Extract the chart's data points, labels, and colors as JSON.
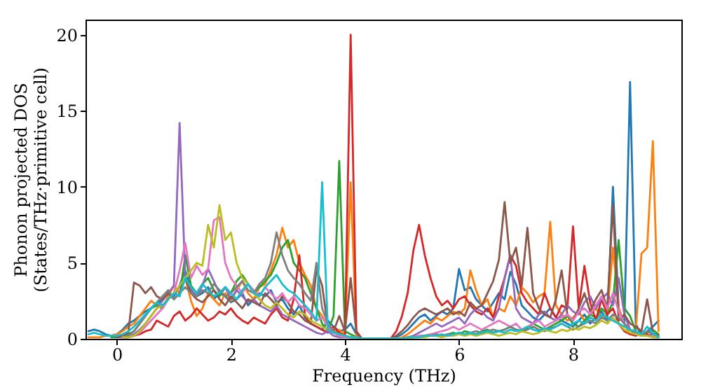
{
  "chart_data": {
    "type": "line",
    "xlabel": "Frequency (THz)",
    "ylabel": "Phonon projected DOS\n(States/THz·primitive cell)",
    "xlim": [
      -0.55,
      9.9
    ],
    "ylim": [
      0,
      21
    ],
    "xticks": [
      0,
      2,
      4,
      6,
      8
    ],
    "yticks": [
      0,
      5,
      10,
      15,
      20
    ],
    "grid": false,
    "marker": "none",
    "line_style": "solid",
    "x": [
      -0.5,
      -0.4,
      -0.3,
      -0.2,
      -0.1,
      0.0,
      0.1,
      0.2,
      0.3,
      0.4,
      0.5,
      0.6,
      0.7,
      0.8,
      0.9,
      1.0,
      1.1,
      1.2,
      1.3,
      1.4,
      1.5,
      1.6,
      1.7,
      1.8,
      1.9,
      2.0,
      2.1,
      2.2,
      2.3,
      2.4,
      2.5,
      2.6,
      2.7,
      2.8,
      2.9,
      3.0,
      3.1,
      3.2,
      3.3,
      3.4,
      3.5,
      3.6,
      3.7,
      3.8,
      3.9,
      4.0,
      4.1,
      4.2,
      4.3,
      4.4,
      4.5,
      4.6,
      4.7,
      4.8,
      4.9,
      5.0,
      5.1,
      5.2,
      5.3,
      5.4,
      5.5,
      5.6,
      5.7,
      5.8,
      5.9,
      6.0,
      6.1,
      6.2,
      6.3,
      6.4,
      6.5,
      6.6,
      6.7,
      6.8,
      6.9,
      7.0,
      7.1,
      7.2,
      7.3,
      7.4,
      7.5,
      7.6,
      7.7,
      7.8,
      7.9,
      8.0,
      8.1,
      8.2,
      8.3,
      8.4,
      8.5,
      8.6,
      8.7,
      8.8,
      8.9,
      9.0,
      9.1,
      9.2,
      9.3,
      9.4,
      9.5
    ],
    "series": [
      {
        "color": "#1f77b4",
        "values": [
          0.5,
          0.6,
          0.5,
          0.3,
          0.2,
          0.3,
          0.6,
          1.0,
          1.2,
          1.5,
          1.8,
          2.0,
          2.3,
          2.6,
          3.0,
          2.8,
          3.5,
          4.5,
          3.2,
          2.8,
          3.0,
          3.4,
          2.6,
          3.0,
          2.8,
          2.4,
          2.6,
          3.0,
          2.2,
          2.6,
          3.0,
          2.8,
          3.2,
          2.4,
          2.6,
          2.0,
          1.6,
          2.2,
          1.4,
          1.0,
          0.8,
          0.6,
          1.2,
          0.8,
          0.5,
          0.6,
          1.0,
          0.3,
          0,
          0,
          0,
          0,
          0,
          0,
          0.1,
          0.3,
          0.6,
          1.0,
          1.4,
          1.6,
          1.2,
          1.5,
          1.8,
          1.6,
          2.0,
          4.6,
          3.2,
          3.4,
          2.6,
          2.2,
          1.8,
          2.4,
          3.0,
          2.6,
          4.4,
          3.6,
          2.2,
          1.8,
          1.4,
          1.2,
          1.6,
          2.0,
          1.4,
          1.2,
          1.0,
          0.8,
          1.2,
          1.6,
          1.0,
          1.4,
          1.8,
          1.2,
          10.0,
          2.0,
          1.0,
          16.9,
          1.0,
          0.2,
          0.5,
          0.8,
          1.2
        ]
      },
      {
        "color": "#ff7f0e",
        "values": [
          0.1,
          0.1,
          0.1,
          0.2,
          0.2,
          0.3,
          0.5,
          0.8,
          1.0,
          1.5,
          2.0,
          2.5,
          2.2,
          2.0,
          2.8,
          3.5,
          3.0,
          4.0,
          2.5,
          1.5,
          2.0,
          3.0,
          2.6,
          2.2,
          3.0,
          2.5,
          3.2,
          3.8,
          3.0,
          2.6,
          3.4,
          3.6,
          4.5,
          5.5,
          7.3,
          6.0,
          6.5,
          5.0,
          4.2,
          3.5,
          2.0,
          1.5,
          0.8,
          0.4,
          0.6,
          0.3,
          10.3,
          0.2,
          0,
          0,
          0,
          0,
          0,
          0,
          0,
          0.1,
          0.3,
          0.6,
          0.9,
          1.2,
          1.0,
          1.4,
          1.2,
          1.5,
          1.8,
          1.6,
          2.0,
          4.5,
          3.2,
          2.2,
          2.6,
          1.4,
          2.0,
          1.8,
          2.8,
          2.2,
          3.4,
          3.0,
          2.4,
          2.8,
          3.0,
          7.7,
          2.2,
          1.6,
          1.2,
          1.4,
          1.8,
          1.2,
          1.6,
          2.0,
          1.4,
          1.6,
          6.0,
          2.0,
          1.0,
          0.3,
          0.5,
          5.6,
          6.0,
          13.0,
          0.5
        ]
      },
      {
        "color": "#2ca02c",
        "values": [
          null,
          null,
          null,
          null,
          0.1,
          0.1,
          0.2,
          0.3,
          0.5,
          1.0,
          1.5,
          2.0,
          2.2,
          2.0,
          2.6,
          3.0,
          2.8,
          5.5,
          3.5,
          3.0,
          3.6,
          4.0,
          3.2,
          2.8,
          3.4,
          3.0,
          3.8,
          4.2,
          3.6,
          3.0,
          3.4,
          3.8,
          4.2,
          5.0,
          6.0,
          6.5,
          5.0,
          4.5,
          4.0,
          3.0,
          2.0,
          1.0,
          0.5,
          1.5,
          11.7,
          0.5,
          0.3,
          0.1,
          0,
          0,
          0,
          0,
          0,
          0,
          0,
          0,
          0.1,
          0.1,
          0.2,
          0.2,
          0.3,
          0.3,
          0.2,
          0.3,
          0.4,
          0.3,
          0.5,
          0.4,
          0.3,
          0.5,
          0.6,
          0.4,
          0.5,
          0.6,
          0.8,
          0.6,
          0.5,
          0.7,
          1.0,
          0.8,
          0.6,
          0.8,
          1.0,
          1.2,
          1.5,
          1.0,
          0.8,
          1.2,
          1.6,
          1.4,
          2.0,
          1.6,
          2.4,
          6.5,
          2.0,
          1.5,
          0.5,
          0.2,
          0.4,
          0.6,
          0.3
        ]
      },
      {
        "color": "#d62728",
        "values": [
          null,
          null,
          null,
          null,
          null,
          null,
          0.1,
          0.1,
          0.2,
          0.3,
          0.5,
          0.6,
          1.2,
          1.0,
          0.8,
          1.5,
          1.8,
          1.2,
          1.5,
          2.0,
          1.6,
          1.2,
          1.4,
          1.8,
          1.6,
          2.0,
          1.5,
          1.2,
          1.0,
          1.4,
          1.2,
          1.0,
          1.6,
          2.0,
          1.4,
          1.2,
          2.6,
          5.5,
          1.5,
          1.0,
          0.8,
          0.6,
          0.4,
          0.8,
          0.4,
          0.2,
          20.0,
          0.5,
          0,
          0,
          0,
          0,
          0,
          0,
          0.5,
          1.5,
          3.0,
          5.8,
          7.5,
          5.5,
          4.0,
          2.8,
          2.2,
          2.5,
          2.0,
          2.6,
          2.8,
          2.2,
          1.8,
          1.6,
          2.0,
          1.4,
          2.8,
          4.0,
          5.5,
          4.8,
          3.0,
          2.4,
          2.0,
          1.6,
          3.0,
          2.0,
          1.4,
          2.2,
          2.0,
          7.4,
          2.0,
          4.8,
          2.4,
          1.2,
          2.6,
          1.6,
          2.0,
          1.0,
          0.5,
          0.3,
          0.2,
          0.4,
          0.3,
          0.1,
          0.1
        ]
      },
      {
        "color": "#9467bd",
        "values": [
          null,
          null,
          null,
          null,
          null,
          0.1,
          0.1,
          0.1,
          0.3,
          0.6,
          1.0,
          1.5,
          2.0,
          2.5,
          3.0,
          3.5,
          14.2,
          4.0,
          3.2,
          2.8,
          3.5,
          4.6,
          3.8,
          3.0,
          3.4,
          2.6,
          3.2,
          2.8,
          2.4,
          2.6,
          2.2,
          2.0,
          1.8,
          2.2,
          1.6,
          1.4,
          1.2,
          1.0,
          0.8,
          0.6,
          0.4,
          0.3,
          0.5,
          0.2,
          0.1,
          0.1,
          0.1,
          0.1,
          0,
          0,
          0,
          0,
          0,
          0,
          0,
          0,
          0.1,
          0.2,
          0.4,
          0.6,
          0.8,
          1.0,
          0.8,
          1.0,
          1.2,
          1.4,
          1.0,
          1.6,
          2.0,
          1.8,
          1.4,
          1.2,
          2.0,
          4.0,
          5.5,
          2.0,
          1.4,
          1.2,
          1.0,
          1.6,
          1.8,
          1.4,
          1.2,
          1.6,
          2.2,
          1.8,
          1.6,
          2.4,
          2.8,
          2.0,
          2.6,
          3.0,
          2.2,
          4.0,
          1.6,
          0.6,
          0.4,
          0.3,
          0.2,
          0.3,
          0.1
        ]
      },
      {
        "color": "#8c564b",
        "values": [
          null,
          null,
          null,
          null,
          null,
          0.1,
          0.2,
          0.4,
          3.7,
          3.5,
          3.0,
          3.4,
          2.8,
          2.6,
          3.0,
          2.6,
          3.0,
          4.0,
          3.0,
          2.6,
          2.4,
          2.8,
          3.2,
          2.6,
          2.2,
          2.8,
          2.4,
          2.0,
          2.6,
          2.4,
          2.2,
          3.0,
          2.6,
          2.2,
          2.8,
          2.4,
          1.8,
          1.6,
          1.2,
          1.0,
          4.6,
          3.5,
          0.8,
          0.5,
          1.5,
          0.5,
          4.0,
          0.4,
          0,
          0,
          0,
          0,
          0,
          0,
          0.2,
          0.5,
          0.9,
          1.4,
          1.8,
          2.0,
          1.8,
          1.6,
          1.8,
          2.0,
          1.6,
          1.8,
          1.5,
          2.4,
          2.0,
          2.2,
          3.0,
          3.8,
          5.2,
          9.0,
          5.0,
          6.0,
          3.5,
          7.3,
          3.0,
          2.0,
          1.6,
          1.4,
          2.6,
          4.5,
          1.6,
          1.2,
          2.0,
          3.0,
          1.8,
          2.6,
          3.2,
          2.0,
          8.8,
          1.2,
          1.6,
          1.0,
          0.8,
          0.5,
          2.6,
          0.4,
          0.2
        ]
      },
      {
        "color": "#e377c2",
        "values": [
          null,
          null,
          null,
          null,
          null,
          null,
          0.1,
          0.1,
          0.2,
          0.4,
          0.8,
          1.2,
          1.6,
          2.0,
          2.6,
          3.0,
          4.5,
          6.3,
          4.0,
          4.8,
          4.2,
          4.6,
          7.8,
          8.0,
          5.0,
          4.0,
          3.5,
          3.0,
          3.6,
          3.2,
          2.8,
          3.4,
          3.0,
          2.6,
          3.0,
          2.4,
          2.8,
          2.2,
          2.0,
          1.6,
          1.2,
          1.4,
          0.8,
          0.4,
          0.2,
          0.1,
          0.1,
          0.1,
          0,
          0,
          0,
          0,
          0,
          0,
          0,
          0,
          0.1,
          0.1,
          0.2,
          0.2,
          0.3,
          0.4,
          0.5,
          0.6,
          0.8,
          0.6,
          0.8,
          1.0,
          0.8,
          0.6,
          0.8,
          1.0,
          1.2,
          1.0,
          0.8,
          1.0,
          0.6,
          0.8,
          1.0,
          1.2,
          0.8,
          1.0,
          1.2,
          1.4,
          1.6,
          1.2,
          1.8,
          2.0,
          1.6,
          2.2,
          2.8,
          2.0,
          3.0,
          1.8,
          1.0,
          0.6,
          0.3,
          null,
          null,
          null,
          null
        ]
      },
      {
        "color": "#7f7f7f",
        "values": [
          null,
          null,
          null,
          null,
          null,
          null,
          0.1,
          0.2,
          0.5,
          1.0,
          1.5,
          2.0,
          2.4,
          2.8,
          3.2,
          2.6,
          3.0,
          3.4,
          3.0,
          2.8,
          3.2,
          3.0,
          3.6,
          3.2,
          2.8,
          3.0,
          3.4,
          3.8,
          3.2,
          3.0,
          3.6,
          4.0,
          5.0,
          7.0,
          5.5,
          4.5,
          4.0,
          3.6,
          3.0,
          2.5,
          5.0,
          2.0,
          1.0,
          0.5,
          0.3,
          0.2,
          0.1,
          0.1,
          0,
          0,
          0,
          0,
          0,
          0,
          0,
          0,
          0.1,
          0.1,
          0.1,
          0.2,
          0.2,
          0.3,
          0.2,
          0.3,
          0.3,
          0.4,
          0.3,
          0.4,
          0.5,
          0.4,
          0.5,
          0.6,
          0.5,
          0.6,
          0.8,
          0.6,
          0.5,
          0.6,
          0.8,
          0.6,
          0.5,
          0.7,
          0.8,
          1.0,
          0.8,
          0.6,
          0.8,
          1.0,
          1.2,
          1.0,
          1.4,
          1.2,
          1.6,
          1.4,
          1.0,
          0.6,
          0.3,
          0.2,
          0.5,
          0.3,
          0.1
        ]
      },
      {
        "color": "#bcbd22",
        "values": [
          null,
          null,
          null,
          null,
          null,
          null,
          0.1,
          0.1,
          0.2,
          0.5,
          1.0,
          1.5,
          2.0,
          2.2,
          2.6,
          3.0,
          3.5,
          4.0,
          4.5,
          5.0,
          4.8,
          7.5,
          6.0,
          8.8,
          6.5,
          7.0,
          5.0,
          4.0,
          3.6,
          3.0,
          2.6,
          2.2,
          2.0,
          2.4,
          2.0,
          1.6,
          1.4,
          1.8,
          1.6,
          1.2,
          1.0,
          0.8,
          0.6,
          0.4,
          0.3,
          0.2,
          0.1,
          0.1,
          0,
          0,
          0,
          0,
          0,
          0,
          0,
          0,
          0,
          0.1,
          0.1,
          0.1,
          0.2,
          0.2,
          0.1,
          0.2,
          0.2,
          0.3,
          0.2,
          0.3,
          0.2,
          0.3,
          0.4,
          0.3,
          0.2,
          0.3,
          0.4,
          0.3,
          0.5,
          0.4,
          0.3,
          0.4,
          0.6,
          0.5,
          0.4,
          0.6,
          0.5,
          0.7,
          0.6,
          0.8,
          0.7,
          0.9,
          1.2,
          1.0,
          1.4,
          1.0,
          0.6,
          0.4,
          0.3,
          0.2,
          0.2,
          0.1,
          0.1
        ]
      },
      {
        "color": "#17becf",
        "values": [
          0.3,
          0.4,
          0.3,
          0.2,
          0.2,
          0.2,
          0.3,
          0.5,
          0.8,
          1.2,
          1.6,
          2.0,
          2.4,
          2.2,
          2.6,
          3.0,
          2.8,
          4.0,
          3.4,
          3.0,
          3.6,
          3.2,
          2.8,
          3.0,
          3.4,
          3.0,
          2.6,
          3.2,
          3.6,
          3.0,
          2.8,
          3.4,
          3.8,
          4.2,
          3.6,
          3.2,
          3.0,
          2.6,
          2.2,
          1.8,
          1.2,
          10.3,
          0.6,
          0.4,
          0.3,
          0.2,
          0.1,
          0.1,
          0,
          0,
          0,
          0,
          0,
          0,
          0,
          0,
          0.1,
          0.1,
          0.1,
          0.2,
          0.2,
          0.2,
          0.3,
          0.2,
          0.3,
          0.4,
          0.3,
          0.4,
          0.3,
          0.4,
          0.5,
          0.4,
          0.5,
          0.4,
          0.6,
          0.5,
          0.6,
          0.8,
          0.6,
          0.5,
          0.7,
          0.6,
          0.8,
          1.0,
          0.8,
          1.0,
          1.2,
          1.0,
          1.4,
          1.2,
          1.6,
          1.4,
          1.2,
          1.0,
          0.8,
          0.6,
          0.5,
          0.3,
          0.8,
          0.4,
          0.1
        ]
      }
    ]
  }
}
